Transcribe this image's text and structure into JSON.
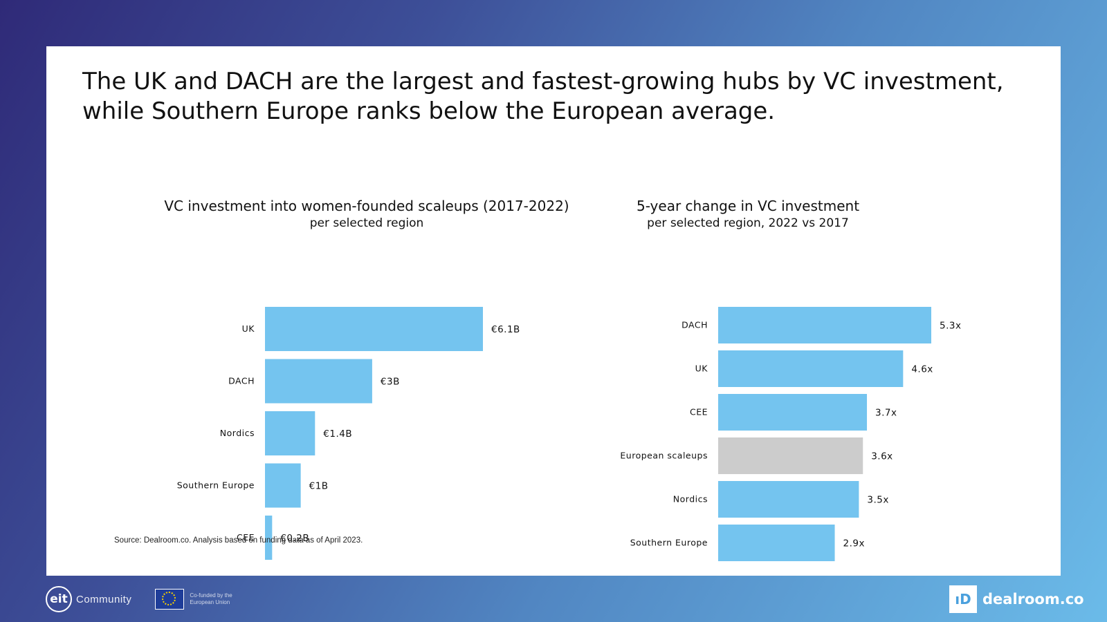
{
  "headline": {
    "line1": "The UK and DACH are the largest and fastest-growing hubs by VC investment,",
    "line2": "while Southern Europe ranks below the European average."
  },
  "chart_data": [
    {
      "type": "bar",
      "orientation": "horizontal",
      "title": "VC investment into women-founded scaleups (2017-2022)",
      "subtitle": "per selected region",
      "categories": [
        "UK",
        "DACH",
        "Nordics",
        "Southern Europe",
        "CEE"
      ],
      "values": [
        6.1,
        3.0,
        1.4,
        1.0,
        0.2
      ],
      "value_labels": [
        "€6.1B",
        "€3B",
        "€1.4B",
        "€1B",
        "€0.2B"
      ],
      "unit": "€B",
      "xlim": [
        0,
        6.1
      ],
      "grid": false,
      "bar_color": "#74c4ef"
    },
    {
      "type": "bar",
      "orientation": "horizontal",
      "title": "5-year change in VC investment",
      "subtitle": "per selected region, 2022 vs 2017",
      "categories": [
        "DACH",
        "UK",
        "CEE",
        "European scaleups",
        "Nordics",
        "Southern Europe"
      ],
      "values": [
        5.3,
        4.6,
        3.7,
        3.6,
        3.5,
        2.9
      ],
      "value_labels": [
        "5.3x",
        "4.6x",
        "3.7x",
        "3.6x",
        "3.5x",
        "2.9x"
      ],
      "xlim": [
        0,
        5.3
      ],
      "grid": false,
      "bar_color": "#74c4ef",
      "highlight_color": "#cccccc",
      "highlight_category": "European scaleups"
    }
  ],
  "source": "Source: Dealroom.co. Analysis based on funding data as of April 2023.",
  "footer": {
    "community_mark": "eit",
    "community_label": "Community",
    "eu_line1": "Co-funded by the",
    "eu_line2": "European Union",
    "brand_icon": "ıD",
    "brand_name": "dealroom.co"
  }
}
